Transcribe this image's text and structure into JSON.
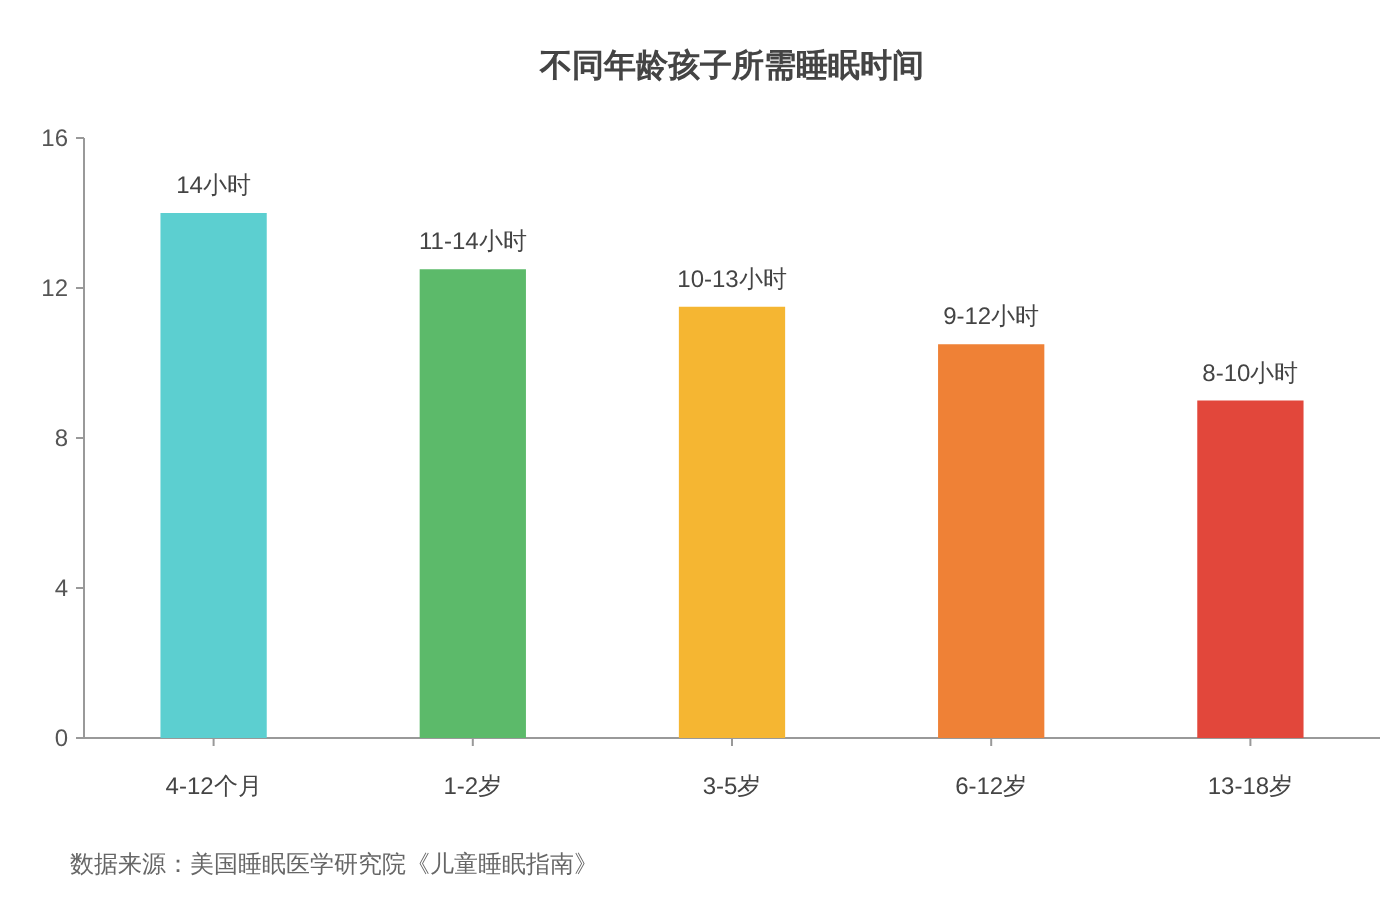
{
  "chart_data": {
    "type": "bar",
    "title": "不同年龄孩子所需睡眠时间",
    "categories": [
      "4-12个月",
      "1-2岁",
      "3-5岁",
      "6-12岁",
      "13-18岁"
    ],
    "values": [
      14,
      12.5,
      11.5,
      10.5,
      9
    ],
    "colors": [
      "#5ccfd0",
      "#5cba6a",
      "#f5b632",
      "#ef8136",
      "#e2473b"
    ],
    "value_labels": [
      "14小时",
      "11-14小时",
      "10-13小时",
      "9-12小时",
      "8-10小时"
    ],
    "ylim": [
      0,
      16
    ],
    "yticks": [
      0,
      4,
      8,
      12,
      16
    ],
    "grid": false,
    "annotations": [
      "数据来源：美国睡眠医学研究院《儿童睡眠指南》"
    ]
  }
}
